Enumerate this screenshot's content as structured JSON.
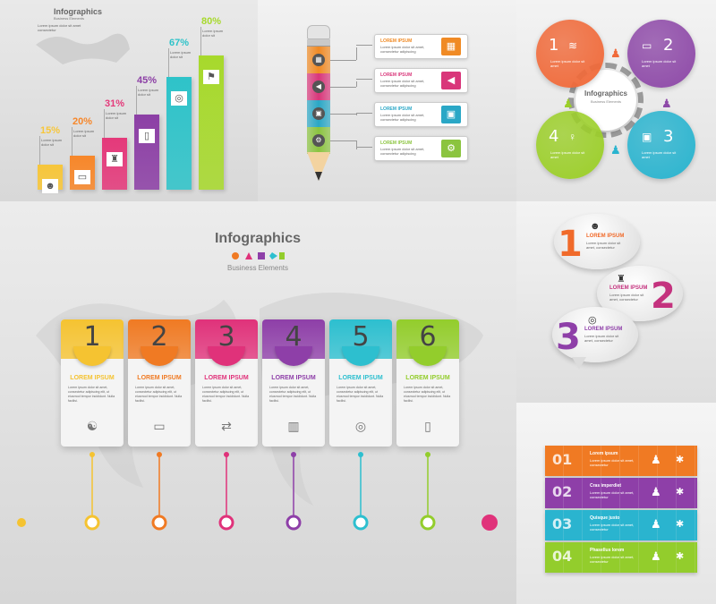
{
  "panel1": {
    "title": "Infographics",
    "subtitle": "Business Elements",
    "bars": [
      {
        "value": 15,
        "label": "15%",
        "color": "#f7c63a",
        "icon": "person-icon",
        "glyph": "☻"
      },
      {
        "value": 20,
        "label": "20%",
        "color": "#f7872a",
        "icon": "laptop-icon",
        "glyph": "▭"
      },
      {
        "value": 31,
        "label": "31%",
        "color": "#e4397a",
        "icon": "stamp-icon",
        "glyph": "♜"
      },
      {
        "value": 45,
        "label": "45%",
        "color": "#8c3fa5",
        "icon": "phone-icon",
        "glyph": "▯"
      },
      {
        "value": 67,
        "label": "67%",
        "color": "#2ec3c9",
        "icon": "target-icon",
        "glyph": "◎"
      },
      {
        "value": 80,
        "label": "80%",
        "color": "#a7d92c",
        "icon": "person-flag-icon",
        "glyph": "⚑"
      }
    ]
  },
  "panel2": {
    "items": [
      {
        "title": "LOREM IPSUM",
        "color": "#f08a24",
        "icon": "chart-icon",
        "glyph": "▦"
      },
      {
        "title": "LOREM IPSUM",
        "color": "#d9367a",
        "icon": "megaphone-icon",
        "glyph": "◀"
      },
      {
        "title": "LOREM IPSUM",
        "color": "#2aa7c6",
        "icon": "presentation-icon",
        "glyph": "▣"
      },
      {
        "title": "LOREM IPSUM",
        "color": "#8bc43f",
        "icon": "gears-icon",
        "glyph": "⚙"
      }
    ]
  },
  "panel3": {
    "title": "Infographics",
    "subtitle": "Business Elements",
    "circles": [
      {
        "num": "1",
        "color": "#f06a3a",
        "icon": "wifi-icon",
        "glyph": "≋"
      },
      {
        "num": "2",
        "color": "#8e4aa8",
        "icon": "laptop-icon",
        "glyph": "▭"
      },
      {
        "num": "3",
        "color": "#2ab4cf",
        "icon": "presentation-icon",
        "glyph": "▣"
      },
      {
        "num": "4",
        "color": "#9ccf2a",
        "icon": "bulb-icon",
        "glyph": "♀"
      }
    ]
  },
  "panel4": {
    "title": "Infographics",
    "subtitle": "Business Elements",
    "cards": [
      {
        "num": "1",
        "title": "LOREM IPSUM",
        "color": "#f5c331",
        "icon": "handshake-icon",
        "glyph": "☯"
      },
      {
        "num": "2",
        "title": "LOREM IPSUM",
        "color": "#f07a23",
        "icon": "monitor-icon",
        "glyph": "▭"
      },
      {
        "num": "3",
        "title": "LOREM IPSUM",
        "color": "#e0327a",
        "icon": "transfer-icon",
        "glyph": "⇄"
      },
      {
        "num": "4",
        "title": "LOREM IPSUM",
        "color": "#8e3fa8",
        "icon": "bar-chart-icon",
        "glyph": "▥"
      },
      {
        "num": "5",
        "title": "LOREM IPSUM",
        "color": "#2dbfcf",
        "icon": "target-icon",
        "glyph": "◎"
      },
      {
        "num": "6",
        "title": "LOREM IPSUM",
        "color": "#93cd2c",
        "icon": "phone-icon",
        "glyph": "▯"
      }
    ],
    "body": "Lorem ipsum dolor sit amet, consectetur adipiscing elit, ut eiusmod tempor incididunt. Nulla facilisi."
  },
  "panel5": {
    "bubbles": [
      {
        "num": "1",
        "title": "LOREM IPSUM",
        "color": "#f06a2a",
        "icon": "head-icon",
        "glyph": "☻"
      },
      {
        "num": "2",
        "title": "LOREM IPSUM",
        "color": "#c4327e",
        "icon": "stamp-icon",
        "glyph": "♜"
      },
      {
        "num": "3",
        "title": "LOREM IPSUM",
        "color": "#8e3fa8",
        "icon": "target-icon",
        "glyph": "◎"
      }
    ]
  },
  "panel6": {
    "rows": [
      {
        "num": "01",
        "title": "Lorem ipsum",
        "color": "#f07a23"
      },
      {
        "num": "02",
        "title": "Cras imperdiet",
        "color": "#8e3fa8"
      },
      {
        "num": "03",
        "title": "Quisque justo",
        "color": "#2ab4cf"
      },
      {
        "num": "04",
        "title": "Phasellus lorem",
        "color": "#93cd2c"
      }
    ]
  }
}
